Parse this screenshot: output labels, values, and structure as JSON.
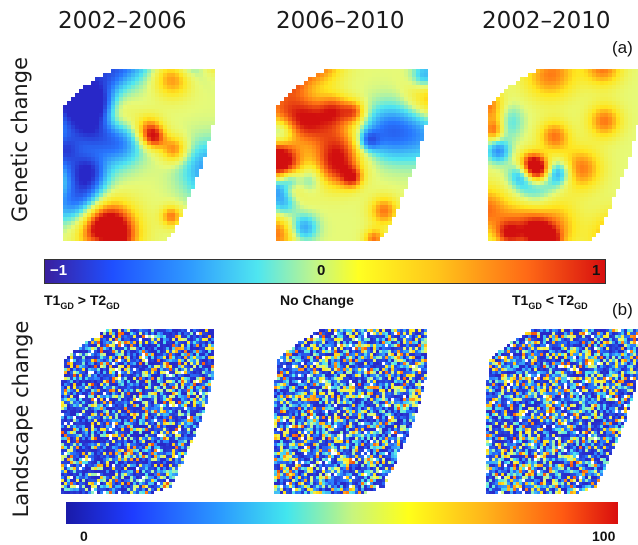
{
  "periods": [
    "2002–2006",
    "2006–2010",
    "2002–2010"
  ],
  "rows": {
    "genetic": {
      "label": "Genetic change",
      "letter": "(a)"
    },
    "landscape": {
      "label": "Landscape  change",
      "letter": "(b)"
    }
  },
  "genetic_colorbar": {
    "min_label": "−1",
    "mid_label": "0",
    "max_label": "1",
    "left_caption": {
      "t1": "T1",
      "sub1": "GD",
      "op": " > ",
      "t2": "T2",
      "sub2": "GD"
    },
    "center_caption": "No Change",
    "right_caption": {
      "t1": "T1",
      "sub1": "GD",
      "op": " < ",
      "t2": "T2",
      "sub2": "GD"
    }
  },
  "landscape_colorbar": {
    "min_label": "0",
    "max_label": "100"
  },
  "colors": {
    "low": "#1e3cff",
    "mid": "#ffff22",
    "high": "#d70f0f"
  }
}
